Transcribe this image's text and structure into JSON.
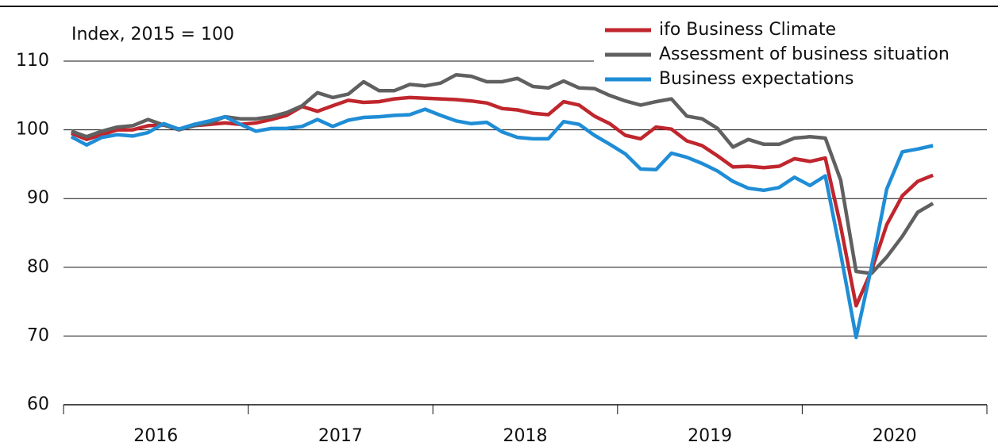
{
  "chart_data": {
    "type": "line",
    "y_label": "Index, 2015 = 100",
    "x": [
      2016.042,
      2016.125,
      2016.208,
      2016.292,
      2016.375,
      2016.458,
      2016.542,
      2016.625,
      2016.708,
      2016.792,
      2016.875,
      2016.958,
      2017.042,
      2017.125,
      2017.208,
      2017.292,
      2017.375,
      2017.458,
      2017.542,
      2017.625,
      2017.708,
      2017.792,
      2017.875,
      2017.958,
      2018.042,
      2018.125,
      2018.208,
      2018.292,
      2018.375,
      2018.458,
      2018.542,
      2018.625,
      2018.708,
      2018.792,
      2018.875,
      2018.958,
      2019.042,
      2019.125,
      2019.208,
      2019.292,
      2019.375,
      2019.458,
      2019.542,
      2019.625,
      2019.708,
      2019.792,
      2019.875,
      2019.958,
      2020.042,
      2020.125,
      2020.208,
      2020.292,
      2020.375,
      2020.458,
      2020.542,
      2020.625,
      2020.708
    ],
    "series": [
      {
        "name": "ifo Business Climate",
        "color": "#c0262d",
        "values": [
          99.5,
          98.6,
          99.3,
          100.0,
          100.0,
          100.6,
          100.7,
          100.1,
          100.6,
          100.8,
          101.0,
          100.8,
          101.0,
          101.5,
          102.1,
          103.4,
          102.7,
          103.5,
          104.3,
          104.0,
          104.1,
          104.5,
          104.7,
          104.6,
          104.5,
          104.4,
          104.2,
          103.9,
          103.1,
          102.9,
          102.4,
          102.2,
          104.1,
          103.6,
          102.0,
          100.9,
          99.2,
          98.7,
          100.4,
          100.1,
          98.4,
          97.7,
          96.2,
          94.6,
          94.7,
          94.5,
          94.7,
          95.8,
          95.4,
          95.9,
          86.0,
          74.4,
          79.5,
          86.2,
          90.4,
          92.5,
          93.4
        ]
      },
      {
        "name": "Assessment of business situation",
        "color": "#606060",
        "values": [
          99.8,
          99.0,
          99.8,
          100.4,
          100.6,
          101.5,
          100.7,
          100.0,
          100.6,
          101.0,
          101.9,
          101.6,
          101.6,
          101.9,
          102.5,
          103.5,
          105.4,
          104.7,
          105.2,
          107.0,
          105.7,
          105.7,
          106.6,
          106.4,
          106.8,
          108.0,
          107.8,
          107.0,
          107.0,
          107.5,
          106.3,
          106.1,
          107.1,
          106.1,
          106.0,
          105.0,
          104.2,
          103.6,
          104.1,
          104.5,
          102.0,
          101.6,
          100.2,
          97.5,
          98.6,
          97.9,
          97.9,
          98.8,
          99.0,
          98.8,
          92.7,
          79.4,
          79.1,
          81.5,
          84.5,
          88.0,
          89.3
        ]
      },
      {
        "name": "Business expectations",
        "color": "#1f8dd6",
        "values": [
          99.0,
          97.8,
          98.9,
          99.3,
          99.1,
          99.6,
          100.9,
          100.1,
          100.8,
          101.3,
          101.9,
          100.8,
          99.8,
          100.2,
          100.2,
          100.5,
          101.5,
          100.5,
          101.4,
          101.8,
          101.9,
          102.1,
          102.2,
          103.0,
          102.1,
          101.3,
          100.9,
          101.1,
          99.7,
          98.9,
          98.7,
          98.7,
          101.2,
          100.8,
          99.2,
          97.9,
          96.5,
          94.3,
          94.2,
          96.6,
          96.0,
          95.1,
          94.0,
          92.5,
          91.5,
          91.2,
          91.6,
          93.1,
          91.9,
          93.3,
          82.0,
          69.8,
          80.0,
          91.4,
          96.8,
          97.2,
          97.7
        ]
      }
    ],
    "xlim": [
      2016,
      2021
    ],
    "xticks": [
      {
        "value": 2016.5,
        "label": "2016"
      },
      {
        "value": 2017.5,
        "label": "2017"
      },
      {
        "value": 2018.5,
        "label": "2018"
      },
      {
        "value": 2019.5,
        "label": "2019"
      },
      {
        "value": 2020.5,
        "label": "2020"
      }
    ],
    "ylim": [
      60,
      110
    ],
    "yticks": [
      60,
      70,
      80,
      90,
      100,
      110
    ],
    "grid": true,
    "legend": "top-right"
  }
}
